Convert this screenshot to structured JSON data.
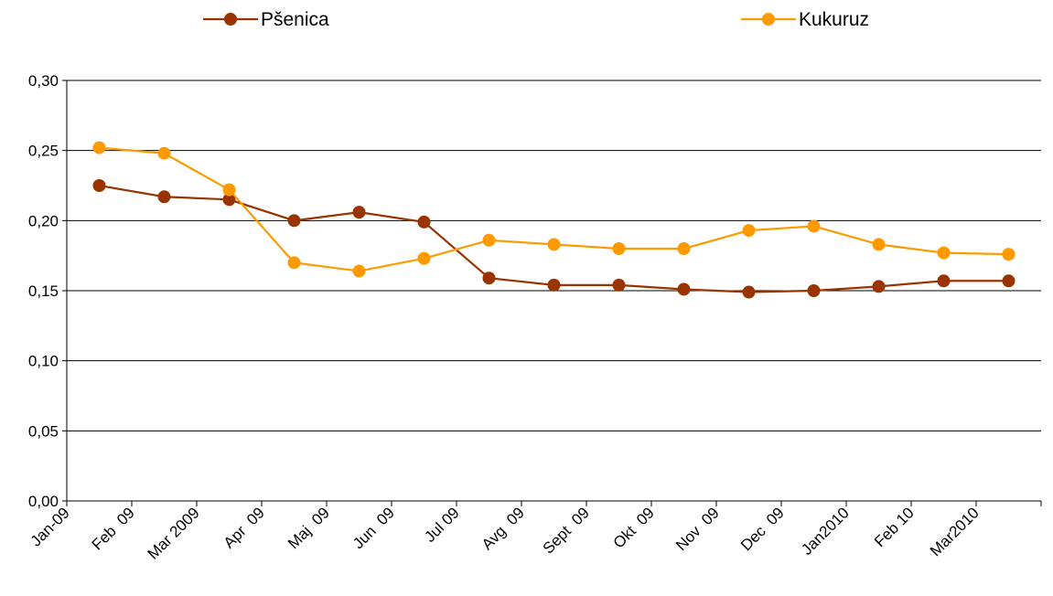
{
  "chart_data": {
    "type": "line",
    "categories": [
      "Jan-09",
      "Feb  09",
      "Mar 2009",
      "Apr  09",
      "Maj  09",
      "Jun  09",
      "Jul 09",
      "Avg  09",
      "Sept  09",
      "Okt  09",
      "Nov  09",
      "Dec  09",
      "Jan2010",
      "Feb 10",
      "Mar2010"
    ],
    "series": [
      {
        "name": "Pšenica",
        "color": "#993300",
        "values": [
          0.225,
          0.217,
          0.215,
          0.2,
          0.206,
          0.199,
          0.159,
          0.154,
          0.154,
          0.151,
          0.149,
          0.15,
          0.153,
          0.157,
          0.157
        ]
      },
      {
        "name": "Kukuruz",
        "color": "#FF9900",
        "values": [
          0.252,
          0.248,
          0.222,
          0.17,
          0.164,
          0.173,
          0.186,
          0.183,
          0.18,
          0.18,
          0.193,
          0.196,
          0.183,
          0.177,
          0.176
        ]
      }
    ],
    "y_ticks": [
      "0,00",
      "0,05",
      "0,10",
      "0,15",
      "0,20",
      "0,25",
      "0,30"
    ],
    "ylim": [
      0,
      0.3
    ],
    "grid": "horizontal",
    "legend_position": "top"
  }
}
